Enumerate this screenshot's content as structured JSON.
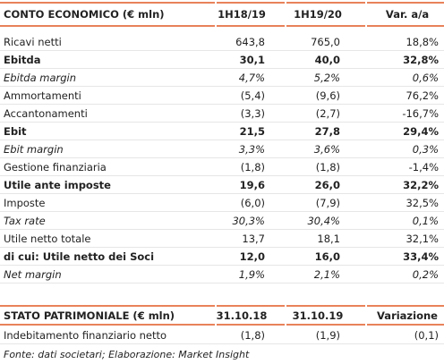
{
  "income": {
    "header": [
      "CONTO ECONOMICO (€ mln)",
      "1H18/19",
      "1H19/20",
      "Var. a/a"
    ],
    "rows": [
      [
        "Ricavi netti",
        "643,8",
        "765,0",
        "18,8%"
      ],
      [
        "Ebitda",
        "30,1",
        "40,0",
        "32,8%"
      ],
      [
        "Ebitda margin",
        "4,7%",
        "5,2%",
        "0,6%"
      ],
      [
        "Ammortamenti",
        "(5,4)",
        "(9,6)",
        "76,2%"
      ],
      [
        "Accantonamenti",
        "(3,3)",
        "(2,7)",
        "-16,7%"
      ],
      [
        "Ebit",
        "21,5",
        "27,8",
        "29,4%"
      ],
      [
        "Ebit margin",
        "3,3%",
        "3,6%",
        "0,3%"
      ],
      [
        "Gestione finanziaria",
        "(1,8)",
        "(1,8)",
        "-1,4%"
      ],
      [
        "Utile ante imposte",
        "19,6",
        "26,0",
        "32,2%"
      ],
      [
        "Imposte",
        "(6,0)",
        "(7,9)",
        "32,5%"
      ],
      [
        "Tax rate",
        "30,3%",
        "30,4%",
        "0,1%"
      ],
      [
        "Utile netto totale",
        "13,7",
        "18,1",
        "32,1%"
      ],
      [
        "di cui: Utile netto dei Soci",
        "12,0",
        "16,0",
        "33,4%"
      ],
      [
        "Net margin",
        "1,9%",
        "2,1%",
        "0,2%"
      ]
    ]
  },
  "balance": {
    "header": [
      "STATO PATRIMONIALE (€ mln)",
      "31.10.18",
      "31.10.19",
      "Variazione"
    ],
    "rows": [
      [
        "Indebitamento finanziario netto",
        "(1,8)",
        "(1,9)",
        "(0,1)"
      ]
    ]
  },
  "source": "Fonte: dati societari; Elaborazione: Market Insight"
}
